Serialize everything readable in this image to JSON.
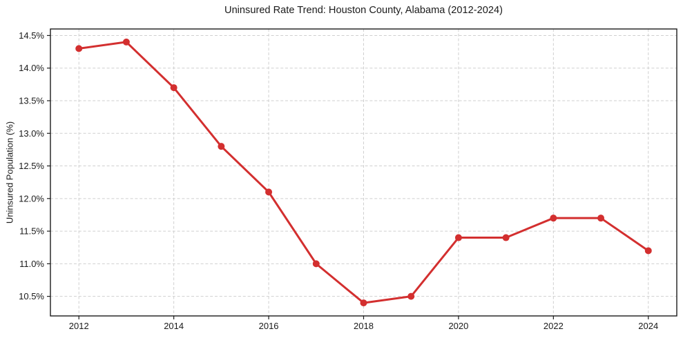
{
  "chart_data": {
    "type": "line",
    "title": "Uninsured Rate Trend: Houston County, Alabama (2012-2024)",
    "xlabel": "",
    "ylabel": "Uninsured Population (%)",
    "x": [
      2012,
      2013,
      2014,
      2015,
      2016,
      2017,
      2018,
      2019,
      2020,
      2021,
      2022,
      2023,
      2024
    ],
    "values": [
      14.3,
      14.4,
      13.7,
      12.8,
      12.1,
      11.0,
      10.4,
      10.5,
      11.4,
      11.4,
      11.7,
      11.7,
      11.2
    ],
    "x_ticks": [
      2012,
      2014,
      2016,
      2018,
      2020,
      2022,
      2024
    ],
    "x_tick_labels": [
      "2012",
      "2014",
      "2016",
      "2018",
      "2020",
      "2022",
      "2024"
    ],
    "y_ticks": [
      10.5,
      11.0,
      11.5,
      12.0,
      12.5,
      13.0,
      13.5,
      14.0,
      14.5
    ],
    "y_tick_labels": [
      "10.5%",
      "11.0%",
      "11.5%",
      "12.0%",
      "12.5%",
      "13.0%",
      "13.5%",
      "14.0%",
      "14.5%"
    ],
    "xlim": [
      2011.4,
      2024.6
    ],
    "ylim": [
      10.2,
      14.6
    ],
    "grid": true,
    "grid_style": "dashed",
    "legend": "none",
    "line_color": "#d32f2f",
    "marker_color": "#d32f2f",
    "grid_color": "#cfcfcf",
    "axis_color": "#1a1a1a",
    "text_color": "#1a1a1a"
  }
}
